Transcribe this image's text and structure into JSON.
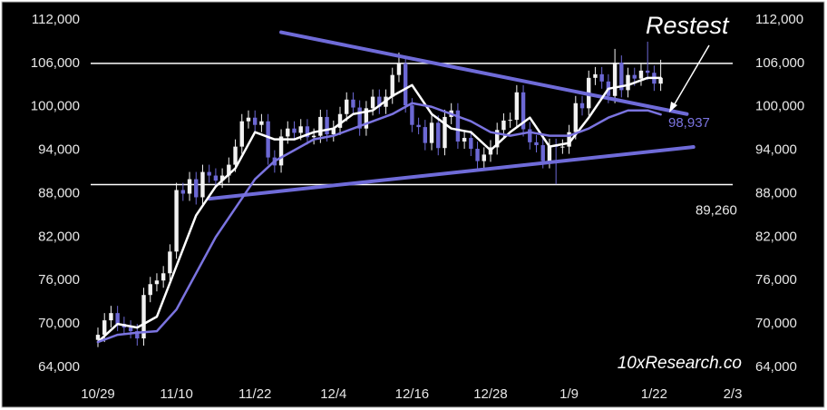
{
  "chart_data": {
    "type": "candlestick",
    "x": [
      "10/29",
      "10/30",
      "10/31",
      "11/1",
      "11/2",
      "11/3",
      "11/4",
      "11/5",
      "11/6",
      "11/7",
      "11/8",
      "11/9",
      "11/10",
      "11/11",
      "11/12",
      "11/13",
      "11/14",
      "11/15",
      "11/16",
      "11/17",
      "11/18",
      "11/19",
      "11/20",
      "11/21",
      "11/22",
      "11/23",
      "11/24",
      "11/25",
      "11/26",
      "11/27",
      "11/28",
      "11/29",
      "11/30",
      "12/1",
      "12/2",
      "12/3",
      "12/4",
      "12/5",
      "12/6",
      "12/7",
      "12/8",
      "12/9",
      "12/10",
      "12/11",
      "12/12",
      "12/13",
      "12/14",
      "12/15",
      "12/16",
      "12/17",
      "12/18",
      "12/19",
      "12/20",
      "12/21",
      "12/22",
      "12/23",
      "12/24",
      "12/25",
      "12/26",
      "12/27",
      "12/28",
      "12/29",
      "12/30",
      "12/31",
      "1/1",
      "1/2",
      "1/3",
      "1/4",
      "1/5",
      "1/6",
      "1/7",
      "1/8",
      "1/9",
      "1/10",
      "1/11",
      "1/12",
      "1/13",
      "1/14",
      "1/15",
      "1/16",
      "1/17",
      "1/18",
      "1/19",
      "1/20",
      "1/21",
      "1/22",
      "1/23"
    ],
    "open": [
      67800,
      68500,
      70500,
      71500,
      70000,
      69500,
      69000,
      68000,
      74000,
      75500,
      76000,
      77000,
      80000,
      88500,
      88000,
      90000,
      87500,
      91000,
      90500,
      89800,
      90500,
      92000,
      94500,
      98000,
      98500,
      97500,
      98000,
      93000,
      91900,
      95900,
      97000,
      96400,
      97300,
      95800,
      96000,
      98600,
      96200,
      97100,
      99000,
      101000,
      99900,
      97000,
      99800,
      101400,
      100000,
      101400,
      104400,
      106000,
      100200,
      97500,
      97200,
      95000,
      97800,
      94300,
      98600,
      99500,
      95200,
      95700,
      94200,
      92500,
      93400,
      94400,
      96800,
      98100,
      98200,
      102000,
      96900,
      95100,
      94700,
      92500,
      94600,
      94500,
      94500,
      96500,
      100500,
      99800,
      104000,
      104500,
      103500,
      101500,
      106100,
      102300,
      104400,
      103900,
      105000,
      104700,
      103200
    ],
    "high": [
      69500,
      71500,
      72500,
      72500,
      71000,
      70500,
      70000,
      75000,
      76500,
      77000,
      78000,
      81000,
      89500,
      89500,
      91000,
      91000,
      92000,
      92000,
      91500,
      91500,
      93000,
      95500,
      99000,
      99500,
      99500,
      99000,
      99000,
      94000,
      96900,
      98000,
      98000,
      98300,
      98300,
      97000,
      99600,
      99600,
      98100,
      100000,
      102000,
      102000,
      100900,
      100800,
      102400,
      102400,
      102400,
      105400,
      107500,
      107000,
      101200,
      98500,
      98200,
      98800,
      98800,
      99600,
      100500,
      100500,
      96700,
      96700,
      95200,
      94400,
      95400,
      97800,
      99100,
      99200,
      103000,
      103000,
      97900,
      96100,
      95700,
      95600,
      95600,
      95500,
      97500,
      101500,
      101500,
      105000,
      105500,
      105500,
      104500,
      108000,
      107100,
      105400,
      105400,
      106000,
      109000,
      105700,
      106500
    ],
    "low": [
      66800,
      67500,
      69500,
      69000,
      68500,
      68000,
      67000,
      67000,
      73000,
      74500,
      75000,
      76000,
      79000,
      87000,
      87000,
      86500,
      86500,
      89500,
      88800,
      88800,
      89500,
      91000,
      93500,
      97000,
      96500,
      96500,
      92000,
      90900,
      90900,
      94900,
      95400,
      95400,
      94800,
      94800,
      95000,
      95200,
      95200,
      96100,
      98000,
      98900,
      96000,
      96000,
      98800,
      99000,
      99000,
      100400,
      103400,
      99200,
      96500,
      96200,
      94000,
      94000,
      93300,
      93300,
      97600,
      94200,
      94200,
      93200,
      91500,
      91500,
      92400,
      93400,
      95800,
      97100,
      97200,
      95900,
      94100,
      93700,
      91500,
      91500,
      89300,
      93500,
      93500,
      95500,
      98800,
      98800,
      103000,
      102500,
      100500,
      100500,
      101300,
      101300,
      102900,
      102900,
      103700,
      102200,
      102200
    ],
    "close": [
      68500,
      70500,
      71500,
      70000,
      69500,
      69000,
      68000,
      74000,
      75500,
      76000,
      77000,
      80000,
      88500,
      88000,
      90000,
      87500,
      91000,
      90500,
      89800,
      90500,
      92000,
      94500,
      98000,
      98500,
      97500,
      98000,
      93000,
      91900,
      95900,
      97000,
      96400,
      97300,
      95800,
      96000,
      98600,
      96200,
      97100,
      99000,
      101000,
      99900,
      97000,
      99800,
      101400,
      100000,
      101400,
      104400,
      106000,
      100200,
      97500,
      97200,
      95000,
      97800,
      94300,
      98600,
      99500,
      95200,
      95700,
      94200,
      92500,
      93400,
      94400,
      96800,
      98100,
      98200,
      102000,
      96900,
      95100,
      94700,
      92500,
      94600,
      94500,
      94500,
      96500,
      100500,
      99800,
      104000,
      104500,
      103500,
      101500,
      106100,
      102300,
      104400,
      103900,
      105000,
      104700,
      103200,
      104000
    ],
    "up_color": "#f2f2f2",
    "down_color": "#6c68d4",
    "lines": [
      {
        "color": "#ffffff",
        "x": [
          "10/29",
          "11/1",
          "11/4",
          "11/7",
          "11/10",
          "11/13",
          "11/16",
          "11/19",
          "11/22",
          "11/25",
          "11/28",
          "12/1",
          "12/4",
          "12/7",
          "12/10",
          "12/13",
          "12/16",
          "12/19",
          "12/22",
          "12/25",
          "12/28",
          "12/31",
          "1/3",
          "1/6",
          "1/9",
          "1/12",
          "1/15",
          "1/18",
          "1/21",
          "1/23"
        ],
        "values": [
          67500,
          70000,
          69500,
          71000,
          78000,
          85000,
          89000,
          91500,
          96500,
          95500,
          95500,
          96500,
          97000,
          99000,
          99500,
          101500,
          103000,
          99000,
          97000,
          96500,
          94000,
          96500,
          98500,
          94500,
          95000,
          98500,
          102500,
          103000,
          104000,
          104000
        ]
      },
      {
        "color": "#7b74e0",
        "x": [
          "10/29",
          "11/1",
          "11/4",
          "11/7",
          "11/10",
          "11/13",
          "11/16",
          "11/19",
          "11/22",
          "11/25",
          "11/28",
          "12/1",
          "12/4",
          "12/7",
          "12/10",
          "12/13",
          "12/16",
          "12/19",
          "12/22",
          "12/25",
          "12/28",
          "12/31",
          "1/3",
          "1/6",
          "1/9",
          "1/12",
          "1/15",
          "1/18",
          "1/21",
          "1/23"
        ],
        "values": [
          67500,
          68500,
          68800,
          69000,
          72000,
          77000,
          82000,
          86000,
          90000,
          92500,
          94000,
          95500,
          96000,
          97000,
          98000,
          99000,
          100500,
          100000,
          99000,
          98000,
          96500,
          96000,
          96500,
          96000,
          96000,
          97000,
          98500,
          99500,
          99500,
          98937
        ],
        "end_label": "98,937"
      }
    ],
    "trendlines": [
      {
        "color": "#6f6bd8",
        "x": [
          "11/26",
          "1/27"
        ],
        "values": [
          110300,
          99000
        ]
      },
      {
        "color": "#6f6bd8",
        "x": [
          "11/15",
          "1/28"
        ],
        "values": [
          87300,
          94450
        ]
      }
    ],
    "hlines": [
      {
        "value": 106000,
        "color": "#ffffff"
      },
      {
        "value": 89260,
        "color": "#ffffff",
        "label": "89,260"
      }
    ],
    "annotations": [
      "Restest",
      "10xResearch.co"
    ],
    "xlim": [
      "10/29",
      "2/3"
    ],
    "xticks": [
      "10/29",
      "11/10",
      "11/22",
      "12/4",
      "12/16",
      "12/28",
      "1/9",
      "1/22",
      "2/3"
    ],
    "ylim": [
      64000,
      112000
    ],
    "yticks": [
      {
        "value": 64000,
        "label": "64,000"
      },
      {
        "value": 70000,
        "label": "70,000"
      },
      {
        "value": 76000,
        "label": "76,000"
      },
      {
        "value": 82000,
        "label": "82,000"
      },
      {
        "value": 88000,
        "label": "88,000"
      },
      {
        "value": 94000,
        "label": "94,000"
      },
      {
        "value": 100000,
        "label": "100,000"
      },
      {
        "value": 106000,
        "label": "106,000"
      },
      {
        "value": 112000,
        "label": "112,000"
      }
    ]
  }
}
